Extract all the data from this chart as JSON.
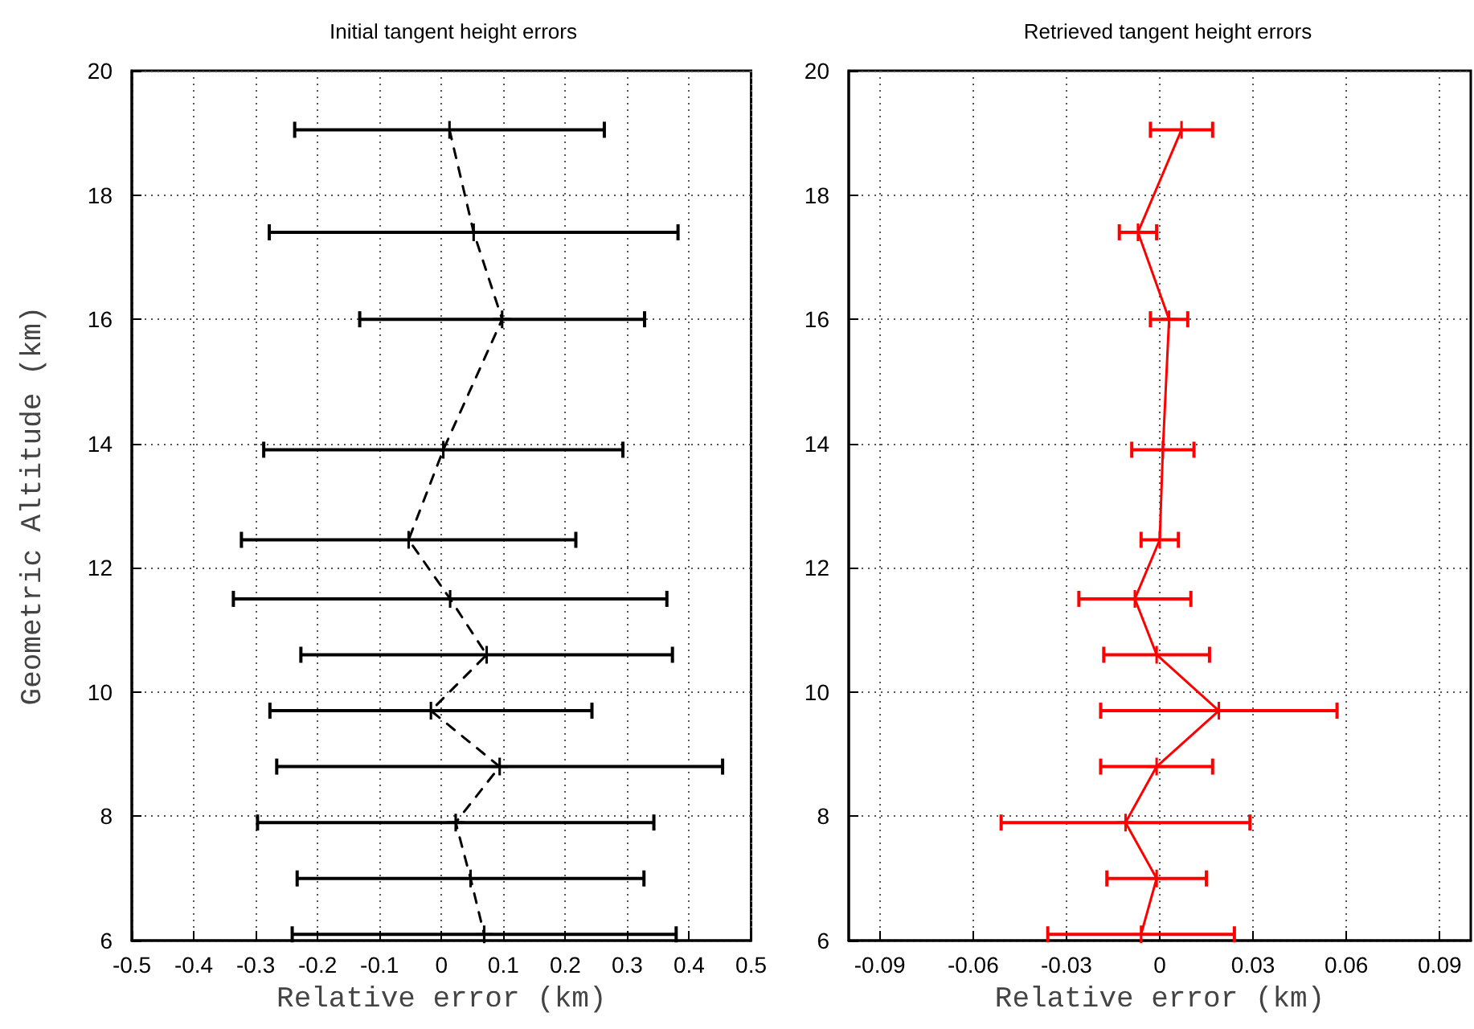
{
  "chart_data": [
    {
      "type": "line",
      "title": "Initial tangent height errors",
      "xlabel": "Relative error (km)",
      "ylabel": "Geometric Altitude (km)",
      "xlim": [
        -0.5,
        0.5
      ],
      "xticks": [
        -0.5,
        -0.4,
        -0.3,
        -0.2,
        -0.1,
        0,
        0.1,
        0.2,
        0.3,
        0.4,
        0.5
      ],
      "ylim": [
        6,
        20
      ],
      "yticks": [
        6,
        8,
        10,
        12,
        14,
        16,
        18,
        20
      ],
      "grid": true,
      "marker": "cross",
      "series": [
        {
          "color": "#000000",
          "line_style": "dashed",
          "x": [
            0.013,
            0.052,
            0.098,
            0.003,
            -0.053,
            0.014,
            0.073,
            -0.017,
            0.094,
            0.023,
            0.047,
            0.069
          ],
          "values": [
            19.05,
            17.4,
            16.0,
            13.9,
            12.45,
            11.5,
            10.6,
            9.7,
            8.8,
            7.9,
            7.0,
            6.1
          ],
          "xerrors": [
            0.25,
            0.33,
            0.23,
            0.29,
            0.27,
            0.35,
            0.3,
            0.26,
            0.36,
            0.32,
            0.28,
            0.31
          ]
        }
      ]
    },
    {
      "type": "line",
      "title": "Retrieved tangent height errors",
      "xlabel": "Relative error (km)",
      "xlim": [
        -0.1,
        0.1
      ],
      "xticks": [
        -0.09,
        -0.06,
        -0.03,
        0,
        0.03,
        0.06,
        0.09
      ],
      "ylim": [
        6,
        20
      ],
      "yticks": [
        6,
        8,
        10,
        12,
        14,
        16,
        18,
        20
      ],
      "grid": true,
      "marker": "cross",
      "series": [
        {
          "color": "#ff0000",
          "line_style": "solid",
          "x": [
            0.007,
            -0.007,
            0.003,
            0.001,
            0.0,
            -0.008,
            -0.001,
            0.019,
            -0.001,
            -0.011,
            -0.001,
            -0.006
          ],
          "values": [
            19.05,
            17.4,
            16.0,
            13.9,
            12.45,
            11.5,
            10.6,
            9.7,
            8.8,
            7.9,
            7.0,
            6.1
          ],
          "xerrors": [
            0.01,
            0.006,
            0.006,
            0.01,
            0.006,
            0.018,
            0.017,
            0.038,
            0.018,
            0.04,
            0.016,
            0.03
          ]
        }
      ]
    }
  ]
}
